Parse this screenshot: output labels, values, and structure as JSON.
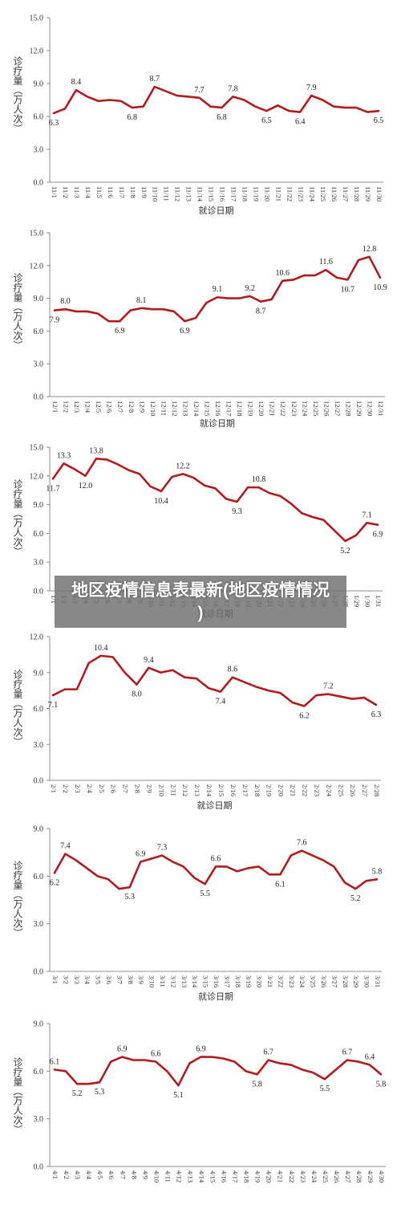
{
  "overlay": {
    "title": "地区疫情信息表最新(地区疫情情况)"
  },
  "line_color": "#b31b1b",
  "chart_data": [
    {
      "type": "line",
      "ylabel": "诊疗量（万人次）",
      "xlabel": "就诊日期",
      "ylim": [
        0,
        15
      ],
      "yticks": [
        "0.0",
        "3.0",
        "6.0",
        "9.0",
        "12.0",
        "15.0"
      ],
      "categories": [
        "11/1",
        "11/2",
        "11/3",
        "11/4",
        "11/5",
        "11/6",
        "11/7",
        "11/8",
        "11/9",
        "11/10",
        "11/11",
        "11/12",
        "11/13",
        "11/14",
        "11/15",
        "11/16",
        "11/17",
        "11/18",
        "11/19",
        "11/20",
        "11/21",
        "11/22",
        "11/23",
        "11/24",
        "11/25",
        "11/26",
        "11/27",
        "11/28",
        "11/29",
        "11/30"
      ],
      "values": [
        6.3,
        6.7,
        8.4,
        7.8,
        7.4,
        7.5,
        7.4,
        6.8,
        6.9,
        8.7,
        8.3,
        7.9,
        7.8,
        7.7,
        6.9,
        6.8,
        7.8,
        7.5,
        6.9,
        6.5,
        7.0,
        6.5,
        6.4,
        7.9,
        7.5,
        6.9,
        6.8,
        6.8,
        6.4,
        6.5
      ],
      "labels": [
        {
          "x": "11/1",
          "text": "6.3",
          "pos": "below"
        },
        {
          "x": "11/3",
          "text": "8.4",
          "pos": "above"
        },
        {
          "x": "11/8",
          "text": "6.8",
          "pos": "below"
        },
        {
          "x": "11/10",
          "text": "8.7",
          "pos": "above"
        },
        {
          "x": "11/14",
          "text": "7.7",
          "pos": "above"
        },
        {
          "x": "11/16",
          "text": "6.8",
          "pos": "below"
        },
        {
          "x": "11/17",
          "text": "7.8",
          "pos": "above"
        },
        {
          "x": "11/20",
          "text": "6.5",
          "pos": "below"
        },
        {
          "x": "11/23",
          "text": "6.4",
          "pos": "below"
        },
        {
          "x": "11/24",
          "text": "7.9",
          "pos": "above"
        },
        {
          "x": "11/30",
          "text": "6.5",
          "pos": "below"
        }
      ],
      "grid": false
    },
    {
      "type": "line",
      "ylabel": "诊疗量（万人次）",
      "xlabel": "就诊日期",
      "ylim": [
        0,
        15
      ],
      "yticks": [
        "0.0",
        "3.0",
        "6.0",
        "9.0",
        "12.0",
        "15.0"
      ],
      "categories": [
        "12/1",
        "12/2",
        "12/3",
        "12/4",
        "12/5",
        "12/6",
        "12/7",
        "12/8",
        "12/9",
        "12/10",
        "12/11",
        "12/12",
        "12/13",
        "12/14",
        "12/15",
        "12/16",
        "12/17",
        "12/18",
        "12/19",
        "12/20",
        "12/21",
        "12/22",
        "12/23",
        "12/24",
        "12/25",
        "12/26",
        "12/27",
        "12/28",
        "12/29",
        "12/30",
        "12/31"
      ],
      "values": [
        7.9,
        8.0,
        7.8,
        7.8,
        7.6,
        6.9,
        6.9,
        7.9,
        8.1,
        8.0,
        8.0,
        7.8,
        6.9,
        7.2,
        8.6,
        9.1,
        9.0,
        9.0,
        9.2,
        8.7,
        8.9,
        10.6,
        10.7,
        11.1,
        11.1,
        11.6,
        10.9,
        10.7,
        12.5,
        12.8,
        10.9
      ],
      "labels": [
        {
          "x": "12/1",
          "text": "7.9",
          "pos": "below"
        },
        {
          "x": "12/2",
          "text": "8.0",
          "pos": "above"
        },
        {
          "x": "12/7",
          "text": "6.9",
          "pos": "below"
        },
        {
          "x": "12/9",
          "text": "8.1",
          "pos": "above"
        },
        {
          "x": "12/13",
          "text": "6.9",
          "pos": "below"
        },
        {
          "x": "12/16",
          "text": "9.1",
          "pos": "above"
        },
        {
          "x": "12/19",
          "text": "9.2",
          "pos": "above"
        },
        {
          "x": "12/20",
          "text": "8.7",
          "pos": "below"
        },
        {
          "x": "12/22",
          "text": "10.6",
          "pos": "above"
        },
        {
          "x": "12/26",
          "text": "11.6",
          "pos": "above"
        },
        {
          "x": "12/28",
          "text": "10.7",
          "pos": "below"
        },
        {
          "x": "12/30",
          "text": "12.8",
          "pos": "above"
        },
        {
          "x": "12/31",
          "text": "10.9",
          "pos": "below"
        }
      ],
      "grid": false
    },
    {
      "type": "line",
      "ylabel": "诊疗量（万人次）",
      "xlabel": "就诊日期",
      "ylim": [
        0,
        15
      ],
      "yticks": [
        "0.0",
        "3.0",
        "6.0",
        "9.0",
        "12.0",
        "15.0"
      ],
      "categories": [
        "1/1",
        "1/2",
        "1/3",
        "1/4",
        "1/5",
        "1/6",
        "1/7",
        "1/8",
        "1/9",
        "1/10",
        "1/11",
        "1/12",
        "1/13",
        "1/14",
        "1/15",
        "1/16",
        "1/17",
        "1/18",
        "1/19",
        "1/20",
        "1/21",
        "1/22",
        "1/23",
        "1/24",
        "1/25",
        "1/26",
        "1/27",
        "1/28",
        "1/29",
        "1/30",
        "1/31"
      ],
      "values": [
        11.7,
        13.3,
        12.7,
        12.0,
        13.8,
        13.7,
        13.2,
        12.6,
        12.2,
        10.9,
        10.4,
        11.9,
        12.2,
        11.8,
        11.0,
        10.7,
        9.6,
        9.3,
        10.8,
        10.8,
        10.2,
        9.9,
        9.1,
        8.1,
        7.7,
        7.4,
        6.3,
        5.2,
        5.8,
        7.1,
        6.9
      ],
      "labels": [
        {
          "x": "1/1",
          "text": "11.7",
          "pos": "below"
        },
        {
          "x": "1/2",
          "text": "13.3",
          "pos": "above"
        },
        {
          "x": "1/4",
          "text": "12.0",
          "pos": "below"
        },
        {
          "x": "1/5",
          "text": "13.8",
          "pos": "above"
        },
        {
          "x": "1/11",
          "text": "10.4",
          "pos": "below"
        },
        {
          "x": "1/13",
          "text": "12.2",
          "pos": "above"
        },
        {
          "x": "1/18",
          "text": "9.3",
          "pos": "below"
        },
        {
          "x": "1/20",
          "text": "10.8",
          "pos": "above"
        },
        {
          "x": "1/28",
          "text": "5.2",
          "pos": "below"
        },
        {
          "x": "1/30",
          "text": "7.1",
          "pos": "above"
        },
        {
          "x": "1/31",
          "text": "6.9",
          "pos": "below"
        }
      ],
      "grid": false
    },
    {
      "type": "line",
      "ylabel": "诊疗量（万人次）",
      "xlabel": "就诊日期",
      "ylim": [
        0,
        12
      ],
      "yticks": [
        "0.0",
        "3.0",
        "6.0",
        "9.0",
        "12.0"
      ],
      "categories": [
        "2/1",
        "2/2",
        "2/3",
        "2/4",
        "2/5",
        "2/6",
        "2/7",
        "2/8",
        "2/9",
        "2/10",
        "2/11",
        "2/12",
        "2/13",
        "2/14",
        "2/15",
        "2/16",
        "2/17",
        "2/18",
        "2/19",
        "2/20",
        "2/21",
        "2/22",
        "2/23",
        "2/24",
        "2/25",
        "2/26",
        "2/27",
        "2/28"
      ],
      "values": [
        7.1,
        7.6,
        7.6,
        9.8,
        10.4,
        10.3,
        9.0,
        8.0,
        9.4,
        9.0,
        9.2,
        8.6,
        8.5,
        7.7,
        7.4,
        8.6,
        8.2,
        7.8,
        7.5,
        7.3,
        6.5,
        6.2,
        7.1,
        7.2,
        7.0,
        6.8,
        6.9,
        6.3
      ],
      "labels": [
        {
          "x": "2/1",
          "text": "7.1",
          "pos": "below"
        },
        {
          "x": "2/5",
          "text": "10.4",
          "pos": "above"
        },
        {
          "x": "2/8",
          "text": "8.0",
          "pos": "below"
        },
        {
          "x": "2/9",
          "text": "9.4",
          "pos": "above"
        },
        {
          "x": "2/15",
          "text": "7.4",
          "pos": "below"
        },
        {
          "x": "2/16",
          "text": "8.6",
          "pos": "above"
        },
        {
          "x": "2/22",
          "text": "6.2",
          "pos": "below"
        },
        {
          "x": "2/24",
          "text": "7.2",
          "pos": "above"
        },
        {
          "x": "2/28",
          "text": "6.3",
          "pos": "below"
        }
      ],
      "grid": false
    },
    {
      "type": "line",
      "ylabel": "诊疗量（万人次）",
      "xlabel": "就诊日期",
      "ylim": [
        0,
        9
      ],
      "yticks": [
        "0.0",
        "3.0",
        "6.0",
        "9.0"
      ],
      "categories": [
        "3/1",
        "3/2",
        "3/3",
        "3/4",
        "3/5",
        "3/6",
        "3/7",
        "3/8",
        "3/9",
        "3/10",
        "3/11",
        "3/12",
        "3/13",
        "3/14",
        "3/15",
        "3/16",
        "3/17",
        "3/18",
        "3/19",
        "3/20",
        "3/21",
        "3/22",
        "3/23",
        "3/24",
        "3/25",
        "3/26",
        "3/27",
        "3/28",
        "3/29",
        "3/30",
        "3/31"
      ],
      "values": [
        6.2,
        7.4,
        7.0,
        6.5,
        6.0,
        5.8,
        5.2,
        5.3,
        6.9,
        7.1,
        7.3,
        6.9,
        6.6,
        5.9,
        5.5,
        6.6,
        6.6,
        6.3,
        6.5,
        6.6,
        6.1,
        6.1,
        7.3,
        7.6,
        7.3,
        7.0,
        6.6,
        5.6,
        5.2,
        5.7,
        5.8
      ],
      "labels": [
        {
          "x": "3/1",
          "text": "6.2",
          "pos": "below"
        },
        {
          "x": "3/2",
          "text": "7.4",
          "pos": "above"
        },
        {
          "x": "3/8",
          "text": "5.3",
          "pos": "below"
        },
        {
          "x": "3/9",
          "text": "6.9",
          "pos": "above"
        },
        {
          "x": "3/11",
          "text": "7.3",
          "pos": "above"
        },
        {
          "x": "3/15",
          "text": "5.5",
          "pos": "below"
        },
        {
          "x": "3/16",
          "text": "6.6",
          "pos": "above"
        },
        {
          "x": "3/22",
          "text": "6.1",
          "pos": "below"
        },
        {
          "x": "3/24",
          "text": "7.6",
          "pos": "above"
        },
        {
          "x": "3/29",
          "text": "5.2",
          "pos": "below"
        },
        {
          "x": "3/31",
          "text": "5.8",
          "pos": "above"
        }
      ],
      "grid": false
    },
    {
      "type": "line",
      "ylabel": "诊疗量（万人次）",
      "ylim": [
        0,
        9
      ],
      "yticks": [
        "0.0",
        "3.0",
        "6.0",
        "9.0"
      ],
      "categories": [
        "4/1",
        "4/2",
        "4/3",
        "4/4",
        "4/5",
        "4/6",
        "4/7",
        "4/8",
        "4/9",
        "4/10",
        "4/11",
        "4/12",
        "4/13",
        "4/14",
        "4/15",
        "4/16",
        "4/17",
        "4/18",
        "4/19",
        "4/20",
        "4/21",
        "4/22",
        "4/23",
        "4/24",
        "4/25",
        "4/26",
        "4/27",
        "4/28",
        "4/29",
        "4/30"
      ],
      "values": [
        6.1,
        6.0,
        5.2,
        5.2,
        5.3,
        6.6,
        6.9,
        6.7,
        6.7,
        6.6,
        6.0,
        5.1,
        6.5,
        6.9,
        6.9,
        6.8,
        6.6,
        6.0,
        5.8,
        6.7,
        6.5,
        6.4,
        6.1,
        5.9,
        5.5,
        6.1,
        6.7,
        6.6,
        6.4,
        5.8
      ],
      "labels": [
        {
          "x": "4/1",
          "text": "6.1",
          "pos": "above"
        },
        {
          "x": "4/3",
          "text": "5.2",
          "pos": "below"
        },
        {
          "x": "4/5",
          "text": "5.3",
          "pos": "below"
        },
        {
          "x": "4/7",
          "text": "6.9",
          "pos": "above"
        },
        {
          "x": "4/10",
          "text": "6.6",
          "pos": "above"
        },
        {
          "x": "4/12",
          "text": "5.1",
          "pos": "below"
        },
        {
          "x": "4/14",
          "text": "6.9",
          "pos": "above"
        },
        {
          "x": "4/19",
          "text": "5.8",
          "pos": "below"
        },
        {
          "x": "4/20",
          "text": "6.7",
          "pos": "above"
        },
        {
          "x": "4/25",
          "text": "5.5",
          "pos": "below"
        },
        {
          "x": "4/27",
          "text": "6.7",
          "pos": "above"
        },
        {
          "x": "4/29",
          "text": "6.4",
          "pos": "above"
        },
        {
          "x": "4/30",
          "text": "5.8",
          "pos": "below"
        }
      ],
      "grid": false
    }
  ]
}
